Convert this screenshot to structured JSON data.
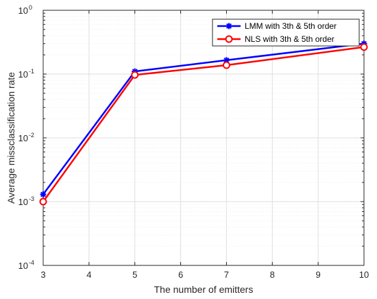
{
  "chart_data": {
    "type": "line",
    "title": "",
    "xlabel": "The number of emitters",
    "ylabel": "Average missclassification rate",
    "xlim": [
      3,
      10
    ],
    "ylim": [
      0.0001,
      1
    ],
    "yscale": "log",
    "grid": true,
    "legend_position": "top-right",
    "x_ticks": [
      3,
      4,
      5,
      6,
      7,
      8,
      9,
      10
    ],
    "x_tick_labels": [
      "3",
      "4",
      "5",
      "6",
      "7",
      "8",
      "9",
      "10"
    ],
    "y_ticks": [
      {
        "value": 1,
        "base": "10",
        "exponent": "0"
      },
      {
        "value": 0.1,
        "base": "10",
        "exponent": "-1"
      },
      {
        "value": 0.01,
        "base": "10",
        "exponent": "-2"
      },
      {
        "value": 0.001,
        "base": "10",
        "exponent": "-3"
      },
      {
        "value": 0.0001,
        "base": "10",
        "exponent": "-4"
      }
    ],
    "series": [
      {
        "name": "LMM with 3th & 5th order",
        "color": "#0000ff",
        "marker": "asterisk",
        "x": [
          3,
          5,
          7,
          10
        ],
        "y": [
          0.0013,
          0.11,
          0.165,
          0.3
        ]
      },
      {
        "name": "NLS with 3th & 5th order",
        "color": "#ff0000",
        "marker": "circle",
        "x": [
          3,
          5,
          7,
          10
        ],
        "y": [
          0.001,
          0.097,
          0.138,
          0.265
        ]
      }
    ]
  }
}
